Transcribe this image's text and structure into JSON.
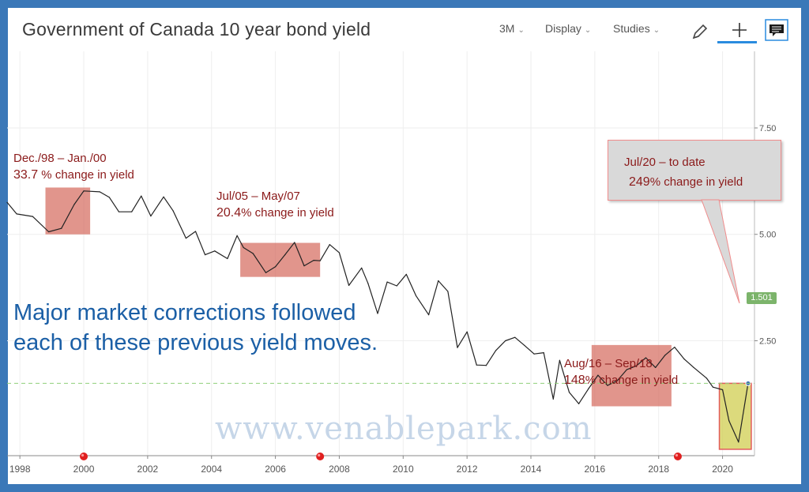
{
  "header": {
    "title": "Government of Canada 10 year bond yield",
    "range_label": "3M",
    "display_label": "Display",
    "studies_label": "Studies"
  },
  "chart_data": {
    "type": "line",
    "title": "Government of Canada 10 year bond yield",
    "xlabel": "",
    "ylabel": "",
    "x_ticks": [
      "1998",
      "2000",
      "2002",
      "2004",
      "2006",
      "2008",
      "2010",
      "2012",
      "2014",
      "2016",
      "2018",
      "2020"
    ],
    "y_ticks": [
      "7.50",
      "5.00",
      "2.50"
    ],
    "xlim": [
      1997.6,
      2021.0
    ],
    "ylim": [
      -0.2,
      9.3
    ],
    "grid": true,
    "last_value": "1.501",
    "series": [
      {
        "x": [
          1997.6,
          1997.9,
          1998.4,
          1998.9,
          1999.3,
          1999.7,
          2000.0,
          2000.5,
          2000.8,
          2001.1,
          2001.5,
          2001.8,
          2002.1,
          2002.5,
          2002.8,
          2003.2,
          2003.5,
          2003.8,
          2004.1,
          2004.5,
          2004.8,
          2005.0,
          2005.3,
          2005.7,
          2006.0,
          2006.3,
          2006.6,
          2006.9,
          2007.2,
          2007.4,
          2007.7,
          2008.0,
          2008.3,
          2008.7,
          2008.9,
          2009.2,
          2009.5,
          2009.8,
          2010.1,
          2010.4,
          2010.8,
          2011.1,
          2011.4,
          2011.7,
          2012.0,
          2012.3,
          2012.6,
          2012.9,
          2013.2,
          2013.5,
          2013.8,
          2014.1,
          2014.4,
          2014.7,
          2014.9,
          2015.2,
          2015.5,
          2015.8,
          2016.1,
          2016.4,
          2016.7,
          2017.0,
          2017.3,
          2017.6,
          2017.9,
          2018.2,
          2018.5,
          2018.8,
          2019.1,
          2019.5,
          2019.7,
          2020.0,
          2020.2,
          2020.5,
          2020.8
        ],
        "y": [
          5.75,
          5.48,
          5.42,
          5.06,
          5.14,
          5.7,
          6.02,
          6.0,
          5.87,
          5.53,
          5.53,
          5.9,
          5.43,
          5.88,
          5.55,
          4.91,
          5.07,
          4.52,
          4.61,
          4.43,
          4.97,
          4.69,
          4.55,
          4.1,
          4.24,
          4.52,
          4.81,
          4.26,
          4.39,
          4.38,
          4.76,
          4.57,
          3.8,
          4.21,
          3.85,
          3.14,
          3.88,
          3.79,
          4.06,
          3.56,
          3.11,
          3.91,
          3.66,
          2.34,
          2.71,
          1.93,
          1.92,
          2.27,
          2.5,
          2.58,
          2.39,
          2.19,
          2.22,
          1.13,
          2.04,
          1.29,
          1.02,
          1.37,
          1.69,
          1.45,
          1.56,
          1.82,
          1.91,
          2.1,
          1.87,
          2.16,
          2.35,
          2.07,
          1.87,
          1.62,
          1.41,
          1.35,
          0.62,
          0.12,
          1.5
        ]
      }
    ],
    "highlights": [
      {
        "x0": 1998.8,
        "x1": 2000.2,
        "y0": 5.0,
        "y1": 6.1
      },
      {
        "x0": 2004.9,
        "x1": 2007.4,
        "y0": 4.0,
        "y1": 4.8
      },
      {
        "x0": 2015.9,
        "x1": 2018.4,
        "y0": 0.96,
        "y1": 2.4
      },
      {
        "x0": 2019.9,
        "x1": 2020.9,
        "y0": -0.05,
        "y1": 1.5
      }
    ],
    "event_markers": [
      2000.0,
      2007.4,
      2018.6
    ]
  },
  "annotations": [
    {
      "period": "Dec./98 – Jan./00",
      "pct": "33.7",
      "text": " % change in yield"
    },
    {
      "period": "Jul/05 – May/07",
      "pct": "20.4",
      "text": "% change in yield"
    },
    {
      "period": "Aug/16 – Sep/18",
      "pct": "148",
      "text": "% change in yield"
    }
  ],
  "callout": {
    "period": "Jul/20 – to date",
    "pct": "249",
    "text": "% change in yield"
  },
  "message": {
    "line1": "Major market corrections followed",
    "line2": "each of these previous yield moves."
  },
  "watermark": "www.venablepark.com"
}
